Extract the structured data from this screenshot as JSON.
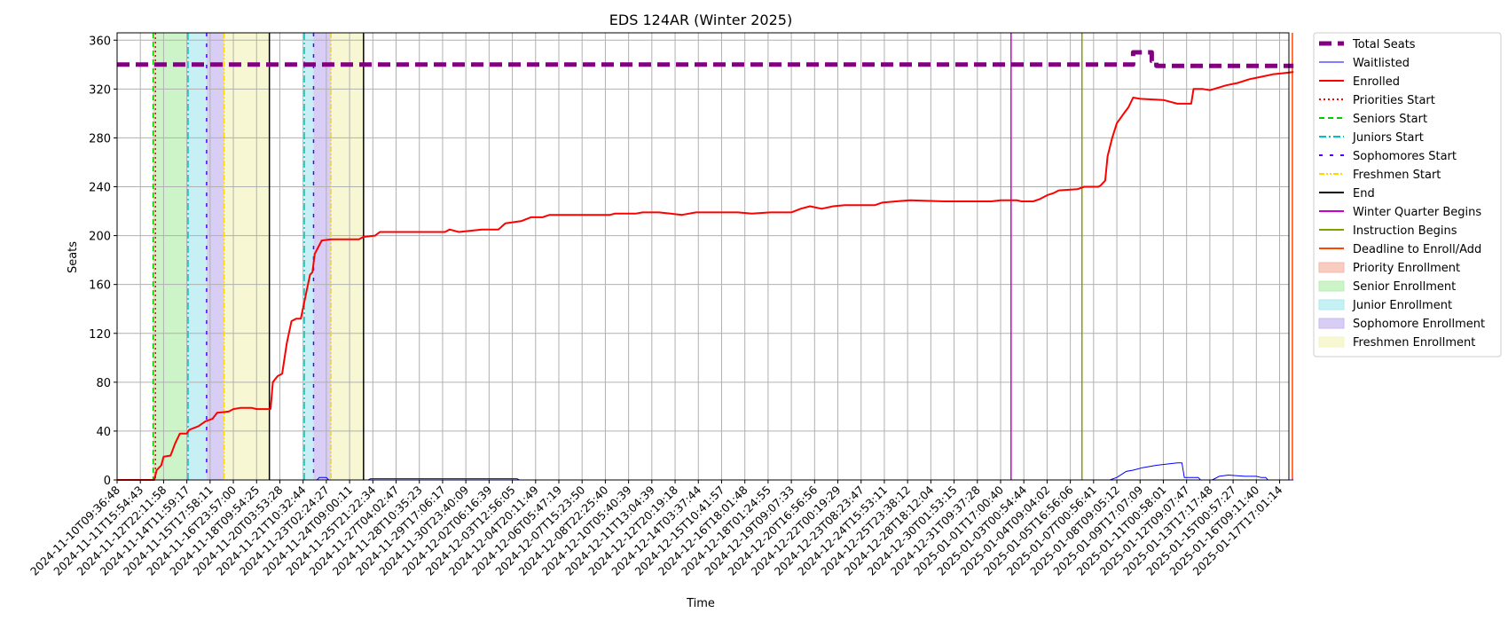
{
  "chart_data": {
    "type": "line",
    "title": "EDS 124AR (Winter 2025)",
    "xlabel": "Time",
    "ylabel": "Seats",
    "ylim": [
      0,
      366
    ],
    "yticks": [
      0,
      40,
      80,
      120,
      160,
      200,
      240,
      280,
      320,
      360
    ],
    "grid": true,
    "legend_position": "outside right",
    "x_tick_labels": [
      "2024-11-10T09:36:48",
      "2024-11-11T15:54:43",
      "2024-11-12T22:11:58",
      "2024-11-14T11:59:17",
      "2024-11-15T17:58:11",
      "2024-11-16T23:57:00",
      "2024-11-18T09:54:25",
      "2024-11-20T03:53:28",
      "2024-11-21T10:32:44",
      "2024-11-23T02:24:27",
      "2024-11-24T09:00:11",
      "2024-11-25T21:22:34",
      "2024-11-27T04:02:47",
      "2024-11-28T10:35:23",
      "2024-11-29T17:06:17",
      "2024-11-30T23:40:09",
      "2024-12-02T06:16:39",
      "2024-12-03T12:56:05",
      "2024-12-04T20:11:49",
      "2024-12-06T05:47:19",
      "2024-12-07T15:23:50",
      "2024-12-08T22:25:40",
      "2024-12-10T05:40:39",
      "2024-12-11T13:04:39",
      "2024-12-12T20:19:18",
      "2024-12-14T03:37:44",
      "2024-12-15T10:41:57",
      "2024-12-16T18:01:48",
      "2024-12-18T01:24:55",
      "2024-12-19T09:07:33",
      "2024-12-20T16:56:56",
      "2024-12-22T00:19:29",
      "2024-12-23T08:23:47",
      "2024-12-24T15:53:11",
      "2024-12-25T23:38:12",
      "2024-12-28T18:12:04",
      "2024-12-30T01:53:15",
      "2024-12-31T09:37:28",
      "2025-01-01T17:00:40",
      "2025-01-03T00:54:44",
      "2025-01-04T09:04:02",
      "2025-01-05T16:56:06",
      "2025-01-07T00:56:41",
      "2025-01-08T09:05:12",
      "2025-01-09T17:07:09",
      "2025-01-11T00:58:01",
      "2025-01-12T09:07:47",
      "2025-01-13T17:17:48",
      "2025-01-15T00:57:27",
      "2025-01-16T09:11:40",
      "2025-01-17T17:01:14"
    ],
    "series": [
      {
        "name": "Total Seats",
        "color": "#800080",
        "style": "dashed-thick",
        "points": [
          [
            0,
            340
          ],
          [
            43.7,
            340
          ],
          [
            43.7,
            350
          ],
          [
            44.5,
            350
          ],
          [
            44.5,
            343
          ],
          [
            44.7,
            343
          ],
          [
            44.7,
            339
          ],
          [
            50.6,
            339
          ]
        ]
      },
      {
        "name": "Waitlisted",
        "color": "#0000ff",
        "style": "solid-thin",
        "points": [
          [
            0,
            0
          ],
          [
            8.6,
            0
          ],
          [
            8.7,
            2
          ],
          [
            9.0,
            2
          ],
          [
            9.1,
            0
          ],
          [
            10.8,
            0
          ],
          [
            10.9,
            1
          ],
          [
            17.2,
            1
          ],
          [
            17.3,
            0
          ],
          [
            42.7,
            0
          ],
          [
            43.0,
            2
          ],
          [
            43.4,
            7
          ],
          [
            43.7,
            8
          ],
          [
            44.1,
            10
          ],
          [
            44.7,
            12
          ],
          [
            45.6,
            14
          ],
          [
            45.8,
            14
          ],
          [
            45.9,
            2
          ],
          [
            46.5,
            2
          ],
          [
            46.6,
            0
          ],
          [
            47.1,
            0
          ],
          [
            47.4,
            3
          ],
          [
            47.8,
            4
          ],
          [
            48.5,
            3
          ],
          [
            49.0,
            3
          ],
          [
            49.2,
            2
          ],
          [
            49.4,
            2
          ],
          [
            49.5,
            0
          ],
          [
            50.6,
            0
          ]
        ]
      },
      {
        "name": "Enrolled",
        "color": "#ff0000",
        "style": "solid",
        "points": [
          [
            0,
            0
          ],
          [
            1.6,
            0
          ],
          [
            1.7,
            8
          ],
          [
            1.9,
            12
          ],
          [
            2.0,
            19
          ],
          [
            2.3,
            20
          ],
          [
            2.5,
            30
          ],
          [
            2.7,
            38
          ],
          [
            3.0,
            38
          ],
          [
            3.1,
            41
          ],
          [
            3.5,
            44
          ],
          [
            3.8,
            48
          ],
          [
            4.1,
            50
          ],
          [
            4.3,
            55
          ],
          [
            4.8,
            56
          ],
          [
            5.0,
            58
          ],
          [
            5.3,
            59
          ],
          [
            5.8,
            59
          ],
          [
            6.0,
            58
          ],
          [
            6.6,
            58
          ],
          [
            6.7,
            80
          ],
          [
            6.9,
            85
          ],
          [
            7.1,
            87
          ],
          [
            7.3,
            112
          ],
          [
            7.5,
            130
          ],
          [
            7.7,
            132
          ],
          [
            7.9,
            132
          ],
          [
            8.1,
            150
          ],
          [
            8.3,
            168
          ],
          [
            8.4,
            170
          ],
          [
            8.5,
            185
          ],
          [
            8.8,
            196
          ],
          [
            9.2,
            197
          ],
          [
            10.4,
            197
          ],
          [
            10.6,
            199
          ],
          [
            11.1,
            200
          ],
          [
            11.3,
            203
          ],
          [
            14.1,
            203
          ],
          [
            14.3,
            205
          ],
          [
            14.7,
            203
          ],
          [
            15.7,
            205
          ],
          [
            16.4,
            205
          ],
          [
            16.7,
            210
          ],
          [
            17.4,
            212
          ],
          [
            17.8,
            215
          ],
          [
            18.3,
            215
          ],
          [
            18.6,
            217
          ],
          [
            21.2,
            217
          ],
          [
            21.4,
            218
          ],
          [
            22.3,
            218
          ],
          [
            22.6,
            219
          ],
          [
            23.3,
            219
          ],
          [
            23.8,
            218
          ],
          [
            24.3,
            217
          ],
          [
            24.9,
            219
          ],
          [
            25.8,
            219
          ],
          [
            26.7,
            219
          ],
          [
            27.3,
            218
          ],
          [
            28.1,
            219
          ],
          [
            29.0,
            219
          ],
          [
            29.4,
            222
          ],
          [
            29.8,
            224
          ],
          [
            30.3,
            222
          ],
          [
            30.8,
            224
          ],
          [
            31.3,
            225
          ],
          [
            32.6,
            225
          ],
          [
            32.9,
            227
          ],
          [
            33.5,
            228
          ],
          [
            34.1,
            229
          ],
          [
            35.6,
            228
          ],
          [
            36.0,
            228
          ],
          [
            37.6,
            228
          ],
          [
            38.0,
            229
          ],
          [
            38.7,
            229
          ],
          [
            38.9,
            228
          ],
          [
            39.4,
            228
          ],
          [
            39.7,
            230
          ],
          [
            40.0,
            233
          ],
          [
            40.3,
            235
          ],
          [
            40.5,
            237
          ],
          [
            41.3,
            238
          ],
          [
            41.6,
            240
          ],
          [
            42.2,
            240
          ],
          [
            42.3,
            241
          ],
          [
            42.5,
            245
          ],
          [
            42.6,
            265
          ],
          [
            42.8,
            280
          ],
          [
            43.0,
            292
          ],
          [
            43.3,
            300
          ],
          [
            43.5,
            305
          ],
          [
            43.7,
            313
          ],
          [
            44.0,
            312
          ],
          [
            45.0,
            311
          ],
          [
            45.6,
            308
          ],
          [
            46.2,
            308
          ],
          [
            46.3,
            320
          ],
          [
            46.7,
            320
          ],
          [
            47.0,
            319
          ],
          [
            47.7,
            323
          ],
          [
            48.2,
            325
          ],
          [
            48.7,
            328
          ],
          [
            49.2,
            330
          ],
          [
            49.7,
            332
          ],
          [
            50.2,
            333
          ],
          [
            50.6,
            334
          ]
        ]
      }
    ],
    "vertical_markers": [
      {
        "name": "Priorities Start",
        "x": 1.65,
        "color": "#ff0000",
        "style": "dotted"
      },
      {
        "name": "Seniors Start",
        "x": 1.55,
        "color": "#00cc00",
        "style": "dashed"
      },
      {
        "name": "Juniors Start",
        "x": 3.05,
        "color": "#00bfbf",
        "style": "dashdot"
      },
      {
        "name": "Juniors Start",
        "x": 8.05,
        "color": "#00bfbf",
        "style": "dashdot"
      },
      {
        "name": "Sophomores Start",
        "x": 3.85,
        "color": "#5500ff",
        "style": "loosedash"
      },
      {
        "name": "Sophomores Start",
        "x": 8.45,
        "color": "#5500ff",
        "style": "loosedash"
      },
      {
        "name": "Freshmen Start",
        "x": 4.6,
        "color": "#ffd700",
        "style": "dashdotdot"
      },
      {
        "name": "Freshmen Start",
        "x": 9.2,
        "color": "#ffd700",
        "style": "dashdotdot"
      },
      {
        "name": "End",
        "x": 6.55,
        "color": "#000000",
        "style": "solid"
      },
      {
        "name": "End",
        "x": 10.6,
        "color": "#000000",
        "style": "solid"
      },
      {
        "name": "Winter Quarter Begins",
        "x": 38.45,
        "color": "#cc00cc",
        "style": "solid"
      },
      {
        "name": "Instruction Begins",
        "x": 41.5,
        "color": "#80a000",
        "style": "solid"
      },
      {
        "name": "Deadline to Enroll/Add",
        "x": 50.55,
        "color": "#ff4400",
        "style": "solid"
      }
    ],
    "spans": [
      {
        "name": "Priority Enrollment",
        "x0": 1.55,
        "x1": 1.62,
        "color": "#f4b8a8"
      },
      {
        "name": "Senior Enrollment",
        "x0": 1.62,
        "x1": 3.05,
        "color": "#b8f0b0"
      },
      {
        "name": "Junior Enrollment",
        "x0": 3.05,
        "x1": 3.85,
        "color": "#aeeaf0"
      },
      {
        "name": "Sophomore Enrollment",
        "x0": 3.85,
        "x1": 4.6,
        "color": "#c8b8f0"
      },
      {
        "name": "Freshmen Enrollment",
        "x0": 4.6,
        "x1": 6.55,
        "color": "#f3f5c0"
      },
      {
        "name": "Junior Enrollment",
        "x0": 8.05,
        "x1": 8.45,
        "color": "#aeeaf0"
      },
      {
        "name": "Sophomore Enrollment",
        "x0": 8.45,
        "x1": 9.2,
        "color": "#c8b8f0"
      },
      {
        "name": "Freshmen Enrollment",
        "x0": 9.2,
        "x1": 10.6,
        "color": "#f3f5c0"
      }
    ],
    "legend": [
      {
        "label": "Total Seats",
        "color": "#800080",
        "kind": "line",
        "style": "dashed-thick"
      },
      {
        "label": "Waitlisted",
        "color": "#0000ff",
        "kind": "line",
        "style": "solid-thin"
      },
      {
        "label": "Enrolled",
        "color": "#ff0000",
        "kind": "line",
        "style": "solid"
      },
      {
        "label": "Priorities Start",
        "color": "#ff0000",
        "kind": "line",
        "style": "dotted"
      },
      {
        "label": "Seniors Start",
        "color": "#00cc00",
        "kind": "line",
        "style": "dashed"
      },
      {
        "label": "Juniors Start",
        "color": "#00bfbf",
        "kind": "line",
        "style": "dashdot"
      },
      {
        "label": "Sophomores Start",
        "color": "#5500ff",
        "kind": "line",
        "style": "loosedash"
      },
      {
        "label": "Freshmen Start",
        "color": "#ffd700",
        "kind": "line",
        "style": "dashdotdot"
      },
      {
        "label": "End",
        "color": "#000000",
        "kind": "line",
        "style": "solid"
      },
      {
        "label": "Winter Quarter Begins",
        "color": "#cc00cc",
        "kind": "line",
        "style": "solid"
      },
      {
        "label": "Instruction Begins",
        "color": "#80a000",
        "kind": "line",
        "style": "solid"
      },
      {
        "label": "Deadline to Enroll/Add",
        "color": "#ff4400",
        "kind": "line",
        "style": "solid"
      },
      {
        "label": "Priority Enrollment",
        "color": "#f4b8a8",
        "kind": "patch"
      },
      {
        "label": "Senior Enrollment",
        "color": "#b8f0b0",
        "kind": "patch"
      },
      {
        "label": "Junior Enrollment",
        "color": "#aeeaf0",
        "kind": "patch"
      },
      {
        "label": "Sophomore Enrollment",
        "color": "#c8b8f0",
        "kind": "patch"
      },
      {
        "label": "Freshmen Enrollment",
        "color": "#f3f5c0",
        "kind": "patch"
      }
    ]
  }
}
